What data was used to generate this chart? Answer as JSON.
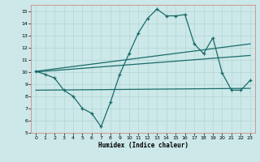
{
  "xlabel": "Humidex (Indice chaleur)",
  "xlim": [
    -0.5,
    23.5
  ],
  "ylim": [
    5,
    15.5
  ],
  "xticks": [
    0,
    1,
    2,
    3,
    4,
    5,
    6,
    7,
    8,
    9,
    10,
    11,
    12,
    13,
    14,
    15,
    16,
    17,
    18,
    19,
    20,
    21,
    22,
    23
  ],
  "yticks": [
    5,
    6,
    7,
    8,
    9,
    10,
    11,
    12,
    13,
    14,
    15
  ],
  "bg_color": "#cce8e8",
  "grid_color": "#b0d8d8",
  "line_color": "#1a6b6b",
  "spine_color": "#cc9999",
  "curve_x": [
    0,
    1,
    2,
    3,
    4,
    5,
    6,
    7,
    8,
    9,
    10,
    11,
    12,
    13,
    14,
    15,
    16,
    17,
    18,
    19,
    20,
    21,
    22,
    23
  ],
  "curve_y": [
    10.05,
    9.8,
    9.5,
    8.5,
    8.0,
    7.0,
    6.6,
    5.5,
    7.5,
    9.8,
    11.5,
    13.2,
    14.4,
    15.15,
    14.6,
    14.6,
    14.7,
    12.3,
    11.5,
    12.8,
    9.9,
    8.5,
    8.5,
    9.3
  ],
  "trend1_x": [
    0,
    23
  ],
  "trend1_y": [
    10.05,
    12.3
  ],
  "trend2_x": [
    0,
    23
  ],
  "trend2_y": [
    10.0,
    11.35
  ],
  "trend3_x": [
    0,
    23
  ],
  "trend3_y": [
    8.5,
    8.65
  ]
}
